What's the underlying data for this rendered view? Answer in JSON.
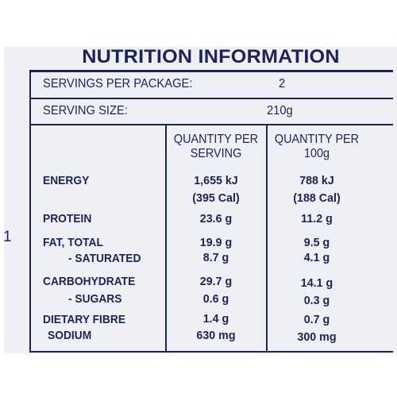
{
  "panel_title": "NUTRITION INFORMATION",
  "servings_per_package": {
    "label": "SERVINGS PER PACKAGE:",
    "value": "2"
  },
  "serving_size": {
    "label": "SERVING SIZE:",
    "value": "210g"
  },
  "columns": {
    "per_serving": [
      "QUANTITY PER",
      "SERVING"
    ],
    "per_100g": [
      "QUANTITY PER",
      "100g"
    ]
  },
  "rows": {
    "energy": {
      "label": "ENERGY",
      "serving": [
        "1,655 kJ",
        "(395 Cal)"
      ],
      "per_100g": [
        "788 kJ",
        "(188 Cal)"
      ]
    },
    "protein": {
      "label": "PROTEIN",
      "serving": "23.6 g",
      "per_100g": "11.2 g"
    },
    "fat_total": {
      "label": "FAT,  TOTAL",
      "serving": "19.9 g",
      "per_100g": "9.5 g"
    },
    "saturated": {
      "label": "- SATURATED",
      "serving": "8.7 g",
      "per_100g": "4.1 g"
    },
    "carbohydrate": {
      "label": "CARBOHYDRATE",
      "serving": "29.7 g",
      "per_100g": "14.1 g"
    },
    "sugars": {
      "label": "- SUGARS",
      "serving": "0.6 g",
      "per_100g": "0.3 g"
    },
    "dietary_fibre": {
      "label": "DIETARY FIBRE",
      "serving": "1.4 g",
      "per_100g": "0.7 g"
    },
    "sodium": {
      "label": "SODIUM",
      "serving": "630 mg",
      "per_100g": "300 mg"
    }
  },
  "stray_mark": "1",
  "colors": {
    "ink": "#1c2456",
    "panel": "#eef0f5",
    "page": "#ffffff"
  }
}
